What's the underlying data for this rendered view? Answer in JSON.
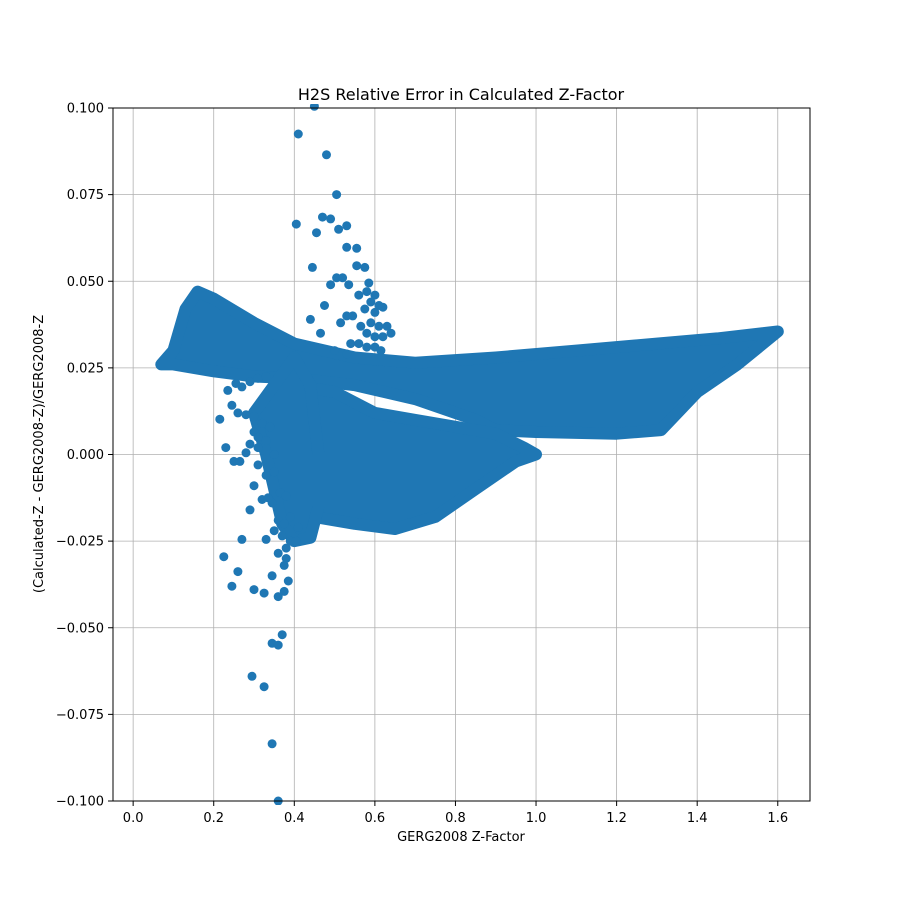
{
  "chart_data": {
    "type": "scatter",
    "title": "H2S Relative Error in Calculated Z-Factor",
    "xlabel": "GERG2008 Z-Factor",
    "ylabel": "(Calculated-Z - GERG2008-Z)/GERG2008-Z",
    "xlim": [
      -0.05,
      1.68
    ],
    "ylim": [
      -0.1,
      0.1
    ],
    "x_ticks": [
      "0.0",
      "0.2",
      "0.4",
      "0.6",
      "0.8",
      "1.0",
      "1.2",
      "1.4",
      "1.6"
    ],
    "x_tick_values": [
      0.0,
      0.2,
      0.4,
      0.6,
      0.8,
      1.0,
      1.2,
      1.4,
      1.6
    ],
    "y_ticks": [
      "0.100",
      "0.075",
      "0.050",
      "0.025",
      "0.000",
      "−0.025",
      "−0.050",
      "−0.075",
      "−0.100"
    ],
    "y_tick_values": [
      0.1,
      0.075,
      0.05,
      0.025,
      0.0,
      -0.025,
      -0.05,
      -0.075,
      -0.1
    ],
    "grid": true,
    "marker_color": "#1f77b4",
    "dense_regions": [
      {
        "polygon": [
          [
            0.07,
            0.026
          ],
          [
            0.1,
            0.03
          ],
          [
            0.13,
            0.042
          ],
          [
            0.16,
            0.047
          ],
          [
            0.2,
            0.045
          ],
          [
            0.3,
            0.038
          ],
          [
            0.4,
            0.032
          ],
          [
            0.55,
            0.028
          ],
          [
            0.7,
            0.0265
          ],
          [
            0.9,
            0.028
          ],
          [
            1.1,
            0.03
          ],
          [
            1.3,
            0.032
          ],
          [
            1.45,
            0.0335
          ],
          [
            1.6,
            0.0355
          ],
          [
            1.5,
            0.026
          ],
          [
            1.4,
            0.018
          ],
          [
            1.31,
            0.007
          ],
          [
            1.2,
            0.006
          ],
          [
            1.0,
            0.0065
          ],
          [
            0.9,
            0.007
          ],
          [
            0.85,
            0.01
          ],
          [
            0.7,
            0.016
          ],
          [
            0.55,
            0.02
          ],
          [
            0.4,
            0.022
          ],
          [
            0.3,
            0.0225
          ],
          [
            0.2,
            0.024
          ],
          [
            0.1,
            0.026
          ]
        ]
      },
      {
        "polygon": [
          [
            0.4,
            0.02
          ],
          [
            0.5,
            0.018
          ],
          [
            0.6,
            0.012
          ],
          [
            0.7,
            0.01
          ],
          [
            0.8,
            0.008
          ],
          [
            0.9,
            0.006
          ],
          [
            0.97,
            0.002
          ],
          [
            1.0,
            0.0
          ],
          [
            0.95,
            -0.002
          ],
          [
            0.85,
            -0.01
          ],
          [
            0.75,
            -0.018
          ],
          [
            0.65,
            -0.0215
          ],
          [
            0.55,
            -0.02
          ],
          [
            0.45,
            -0.018
          ],
          [
            0.4,
            -0.022
          ],
          [
            0.38,
            -0.018
          ],
          [
            0.36,
            -0.01
          ],
          [
            0.35,
            0.0
          ],
          [
            0.36,
            0.008
          ]
        ]
      },
      {
        "polygon": [
          [
            0.3,
            0.012
          ],
          [
            0.4,
            0.028
          ],
          [
            0.44,
            0.02
          ],
          [
            0.45,
            0.01
          ],
          [
            0.46,
            0.0
          ],
          [
            0.46,
            -0.015
          ],
          [
            0.44,
            -0.024
          ],
          [
            0.4,
            -0.025
          ],
          [
            0.37,
            -0.02
          ],
          [
            0.35,
            -0.01
          ],
          [
            0.33,
            0.0
          ]
        ]
      }
    ],
    "scatter_points": [
      [
        0.45,
        0.1005
      ],
      [
        0.41,
        0.0925
      ],
      [
        0.48,
        0.0865
      ],
      [
        0.505,
        0.075
      ],
      [
        0.405,
        0.0665
      ],
      [
        0.47,
        0.0685
      ],
      [
        0.49,
        0.068
      ],
      [
        0.53,
        0.066
      ],
      [
        0.455,
        0.064
      ],
      [
        0.51,
        0.065
      ],
      [
        0.53,
        0.0598
      ],
      [
        0.555,
        0.0595
      ],
      [
        0.555,
        0.0545
      ],
      [
        0.575,
        0.054
      ],
      [
        0.445,
        0.054
      ],
      [
        0.505,
        0.051
      ],
      [
        0.52,
        0.051
      ],
      [
        0.535,
        0.049
      ],
      [
        0.49,
        0.049
      ],
      [
        0.585,
        0.0495
      ],
      [
        0.56,
        0.046
      ],
      [
        0.58,
        0.047
      ],
      [
        0.6,
        0.046
      ],
      [
        0.59,
        0.044
      ],
      [
        0.475,
        0.043
      ],
      [
        0.61,
        0.043
      ],
      [
        0.575,
        0.042
      ],
      [
        0.6,
        0.041
      ],
      [
        0.62,
        0.0425
      ],
      [
        0.44,
        0.039
      ],
      [
        0.515,
        0.038
      ],
      [
        0.53,
        0.04
      ],
      [
        0.545,
        0.04
      ],
      [
        0.565,
        0.037
      ],
      [
        0.59,
        0.038
      ],
      [
        0.61,
        0.037
      ],
      [
        0.63,
        0.037
      ],
      [
        0.58,
        0.035
      ],
      [
        0.6,
        0.034
      ],
      [
        0.62,
        0.034
      ],
      [
        0.64,
        0.035
      ],
      [
        0.465,
        0.035
      ],
      [
        0.54,
        0.032
      ],
      [
        0.56,
        0.032
      ],
      [
        0.58,
        0.031
      ],
      [
        0.6,
        0.031
      ],
      [
        0.615,
        0.03
      ],
      [
        0.5,
        0.03
      ],
      [
        0.53,
        0.029
      ],
      [
        0.235,
        0.0185
      ],
      [
        0.255,
        0.0205
      ],
      [
        0.27,
        0.0195
      ],
      [
        0.29,
        0.021
      ],
      [
        0.31,
        0.022
      ],
      [
        0.33,
        0.0225
      ],
      [
        0.215,
        0.0102
      ],
      [
        0.245,
        0.0142
      ],
      [
        0.26,
        0.012
      ],
      [
        0.28,
        0.0115
      ],
      [
        0.3,
        0.011
      ],
      [
        0.32,
        0.009
      ],
      [
        0.34,
        0.008
      ],
      [
        0.3,
        0.0065
      ],
      [
        0.31,
        0.005
      ],
      [
        0.33,
        0.004
      ],
      [
        0.29,
        0.003
      ],
      [
        0.31,
        0.002
      ],
      [
        0.23,
        0.002
      ],
      [
        0.28,
        0.0005
      ],
      [
        0.25,
        -0.002
      ],
      [
        0.265,
        -0.002
      ],
      [
        0.31,
        -0.003
      ],
      [
        0.35,
        0.0
      ],
      [
        0.33,
        -0.006
      ],
      [
        0.35,
        -0.005
      ],
      [
        0.3,
        -0.009
      ],
      [
        0.32,
        -0.013
      ],
      [
        0.345,
        -0.014
      ],
      [
        0.29,
        -0.016
      ],
      [
        0.335,
        -0.0125
      ],
      [
        0.365,
        -0.011
      ],
      [
        0.38,
        -0.012
      ],
      [
        0.36,
        -0.019
      ],
      [
        0.375,
        -0.02
      ],
      [
        0.35,
        -0.022
      ],
      [
        0.39,
        -0.018
      ],
      [
        0.37,
        -0.0235
      ],
      [
        0.38,
        -0.027
      ],
      [
        0.39,
        -0.025
      ],
      [
        0.405,
        -0.025
      ],
      [
        0.41,
        -0.021
      ],
      [
        0.27,
        -0.0245
      ],
      [
        0.33,
        -0.0245
      ],
      [
        0.36,
        -0.0285
      ],
      [
        0.38,
        -0.03
      ],
      [
        0.375,
        -0.032
      ],
      [
        0.225,
        -0.0295
      ],
      [
        0.26,
        -0.0338
      ],
      [
        0.345,
        -0.035
      ],
      [
        0.385,
        -0.0365
      ],
      [
        0.245,
        -0.038
      ],
      [
        0.3,
        -0.039
      ],
      [
        0.325,
        -0.04
      ],
      [
        0.375,
        -0.0395
      ],
      [
        0.36,
        -0.041
      ],
      [
        0.37,
        -0.052
      ],
      [
        0.345,
        -0.0545
      ],
      [
        0.36,
        -0.055
      ],
      [
        0.295,
        -0.064
      ],
      [
        0.325,
        -0.067
      ],
      [
        0.345,
        -0.0835
      ],
      [
        0.36,
        -0.1
      ]
    ]
  }
}
